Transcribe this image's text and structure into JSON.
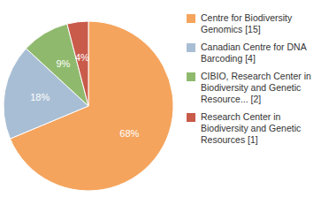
{
  "chart_data": {
    "type": "pie",
    "categories": [
      "Centre for Biodiversity\nGenomics [15]",
      "Canadian Centre for DNA\nBarcoding [4]",
      "CIBIO, Research Center in\nBiodiversity and Genetic\nResource... [2]",
      "Research Center in\nBiodiversity and Genetic\nResources [1]"
    ],
    "values": [
      68,
      18,
      9,
      4
    ],
    "value_labels": [
      "68%",
      "18%",
      "9%",
      "4%"
    ],
    "data_labels": true,
    "colors": [
      "#F5A45D",
      "#A8BED4",
      "#8FBA6E",
      "#C95B4B"
    ],
    "legend": "right"
  }
}
